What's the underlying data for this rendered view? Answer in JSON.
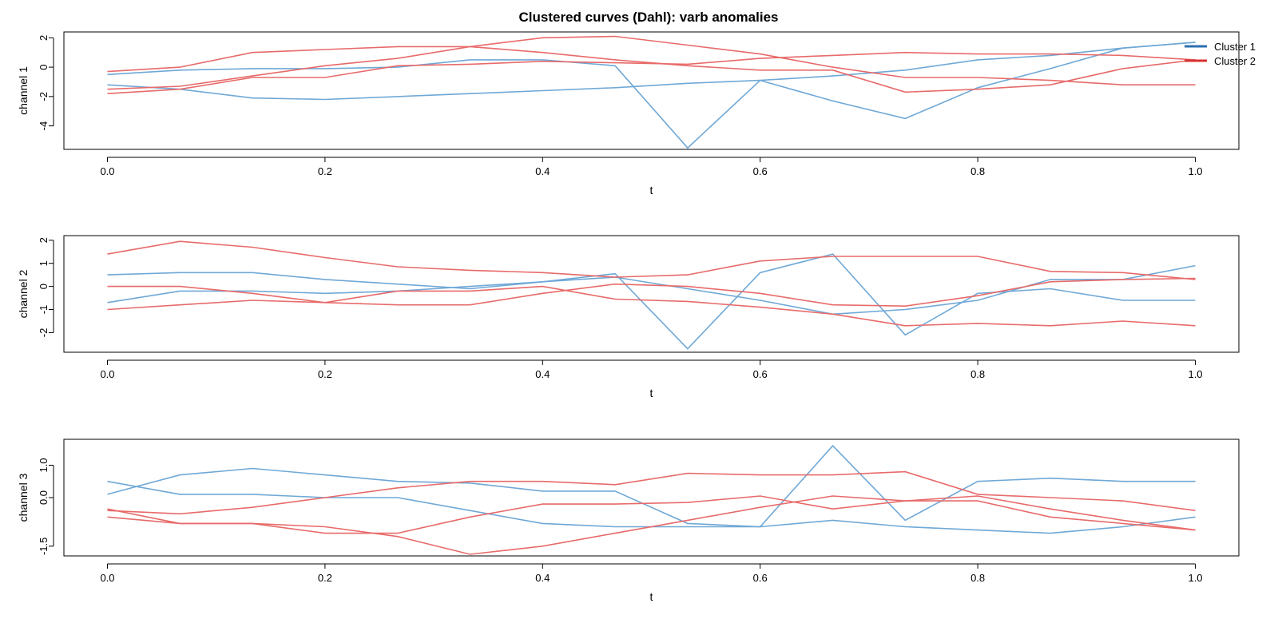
{
  "chart_data": {
    "type": "line",
    "title": "Clustered curves (Dahl): varb anomalies",
    "legend": {
      "placement": "top-right",
      "entries": [
        {
          "label": "Cluster 1",
          "color": "#6fa8d6"
        },
        {
          "label": "Cluster 2",
          "color": "#e86a6a"
        }
      ]
    },
    "x": [
      0,
      0.0667,
      0.1333,
      0.2,
      0.2667,
      0.3333,
      0.4,
      0.4667,
      0.5333,
      0.6,
      0.6667,
      0.7333,
      0.8,
      0.8667,
      0.9333,
      1.0
    ],
    "x_ticks": [
      0,
      0.2,
      0.4,
      0.6,
      0.8,
      1.0
    ],
    "x_tick_labels": [
      "0.0",
      "0.2",
      "0.4",
      "0.6",
      "0.8",
      "1.0"
    ],
    "xlim": [
      -0.04,
      1.04
    ],
    "panels": [
      {
        "xlabel": "t",
        "ylabel": "channel 1",
        "ylim": [
          -5.6,
          2.4
        ],
        "y_ticks": [
          -4,
          -2,
          0,
          2
        ],
        "y_tick_labels": [
          "-4",
          "-2",
          "0",
          "2"
        ],
        "series": [
          {
            "cluster": 1,
            "values": [
              -0.5,
              -0.2,
              -0.1,
              -0.1,
              0.0,
              0.5,
              0.5,
              0.1,
              -5.5,
              -0.9,
              -2.3,
              -3.5,
              -1.4,
              -0.1,
              1.3,
              1.7
            ]
          },
          {
            "cluster": 1,
            "values": [
              -1.2,
              -1.5,
              -2.1,
              -2.2,
              -2.0,
              -1.8,
              -1.6,
              -1.4,
              -1.1,
              -0.9,
              -0.6,
              -0.2,
              0.5,
              0.8,
              1.3,
              1.7
            ]
          },
          {
            "cluster": 2,
            "values": [
              -0.3,
              0.0,
              1.0,
              1.2,
              1.4,
              1.4,
              1.0,
              0.5,
              0.1,
              -0.2,
              -0.2,
              -1.7,
              -1.5,
              -1.2,
              -0.1,
              0.5
            ]
          },
          {
            "cluster": 2,
            "values": [
              -1.5,
              -1.3,
              -0.6,
              0.1,
              0.6,
              1.4,
              2.0,
              2.1,
              1.5,
              0.9,
              0.0,
              -0.7,
              -0.7,
              -0.9,
              -1.2,
              -1.2
            ]
          },
          {
            "cluster": 2,
            "values": [
              -1.8,
              -1.5,
              -0.7,
              -0.7,
              0.1,
              0.2,
              0.4,
              0.3,
              0.2,
              0.6,
              0.8,
              1.0,
              0.9,
              0.9,
              0.8,
              0.5
            ]
          }
        ]
      },
      {
        "xlabel": "t",
        "ylabel": "channel 2",
        "ylim": [
          -2.85,
          2.2
        ],
        "y_ticks": [
          -2,
          -1,
          0,
          1,
          2
        ],
        "y_tick_labels": [
          "-2",
          "-1",
          "0",
          "1",
          "2"
        ],
        "series": [
          {
            "cluster": 1,
            "values": [
              0.5,
              0.6,
              0.6,
              0.3,
              0.1,
              -0.1,
              0.2,
              0.55,
              -2.7,
              0.6,
              1.4,
              -2.1,
              -0.3,
              -0.1,
              -0.6,
              -0.6
            ]
          },
          {
            "cluster": 1,
            "values": [
              -0.7,
              -0.2,
              -0.2,
              -0.3,
              -0.2,
              0.0,
              0.2,
              0.4,
              -0.1,
              -0.6,
              -1.2,
              -1.0,
              -0.6,
              0.3,
              0.3,
              0.9
            ]
          },
          {
            "cluster": 2,
            "values": [
              1.4,
              1.95,
              1.7,
              1.25,
              0.85,
              0.7,
              0.6,
              0.4,
              0.5,
              1.1,
              1.3,
              1.3,
              1.3,
              0.65,
              0.6,
              0.3
            ]
          },
          {
            "cluster": 2,
            "values": [
              0.0,
              0.0,
              -0.3,
              -0.7,
              -0.2,
              -0.2,
              0.0,
              -0.55,
              -0.65,
              -0.9,
              -1.2,
              -1.7,
              -1.6,
              -1.7,
              -1.5,
              -1.7
            ]
          },
          {
            "cluster": 2,
            "values": [
              -1.0,
              -0.8,
              -0.6,
              -0.7,
              -0.8,
              -0.8,
              -0.3,
              0.1,
              0.0,
              -0.3,
              -0.8,
              -0.85,
              -0.4,
              0.2,
              0.3,
              0.35
            ]
          }
        ]
      },
      {
        "xlabel": "t",
        "ylabel": "channel 3",
        "ylim": [
          -1.8,
          1.8
        ],
        "y_ticks": [
          -1.5,
          0,
          1
        ],
        "y_tick_labels": [
          "-1.5",
          "0.0",
          "1.0"
        ],
        "series": [
          {
            "cluster": 1,
            "values": [
              0.5,
              0.1,
              0.1,
              0.0,
              0.0,
              -0.4,
              -0.8,
              -0.9,
              -0.9,
              -0.9,
              -0.7,
              -0.9,
              -1.0,
              -1.1,
              -0.9,
              -0.6
            ]
          },
          {
            "cluster": 1,
            "values": [
              0.1,
              0.7,
              0.9,
              0.7,
              0.5,
              0.45,
              0.2,
              0.2,
              -0.8,
              -0.9,
              1.6,
              -0.7,
              0.5,
              0.6,
              0.5,
              0.5
            ]
          },
          {
            "cluster": 2,
            "values": [
              -0.4,
              -0.5,
              -0.3,
              0.0,
              0.3,
              0.5,
              0.5,
              0.4,
              0.75,
              0.7,
              0.7,
              0.8,
              0.1,
              0.0,
              -0.1,
              -0.4
            ]
          },
          {
            "cluster": 2,
            "values": [
              -0.6,
              -0.8,
              -0.8,
              -1.1,
              -1.1,
              -0.6,
              -0.2,
              -0.2,
              -0.15,
              0.05,
              -0.35,
              -0.1,
              -0.1,
              -0.6,
              -0.8,
              -1.0
            ]
          },
          {
            "cluster": 2,
            "values": [
              -0.35,
              -0.8,
              -0.8,
              -0.9,
              -1.2,
              -1.75,
              -1.5,
              -1.1,
              -0.7,
              -0.3,
              0.05,
              -0.1,
              0.05,
              -0.35,
              -0.7,
              -1.0
            ]
          }
        ]
      }
    ]
  }
}
